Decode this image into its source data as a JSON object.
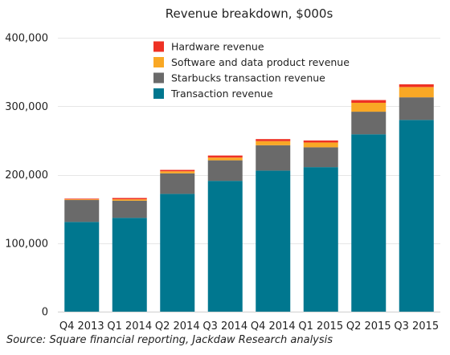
{
  "source_note": "Source: Square financial reporting, Jackdaw Research analysis",
  "chart_data": {
    "type": "bar",
    "stacked": true,
    "title": "Revenue breakdown, $000s",
    "xlabel": "",
    "ylabel": "",
    "ylim": [
      0,
      400000
    ],
    "yticks": [
      0,
      100000,
      200000,
      300000,
      400000
    ],
    "ytick_labels": [
      "0",
      "100,000",
      "200,000",
      "300,000",
      "400,000"
    ],
    "grid": true,
    "legend_position": "top-center",
    "categories": [
      "Q4 2013",
      "Q1 2014",
      "Q2 2014",
      "Q3 2014",
      "Q4 2014",
      "Q1 2015",
      "Q2 2015",
      "Q3 2015"
    ],
    "series": [
      {
        "name": "Transaction revenue",
        "color": "#00778f",
        "values": [
          131000,
          137000,
          172000,
          191000,
          206000,
          211000,
          259000,
          280000
        ]
      },
      {
        "name": "Starbucks transaction revenue",
        "color": "#6a6a6a",
        "values": [
          32000,
          25000,
          30000,
          30000,
          37000,
          29000,
          33000,
          33000
        ]
      },
      {
        "name": "Software and data product revenue",
        "color": "#f9a825",
        "values": [
          1000,
          2000,
          3000,
          4000,
          6000,
          7000,
          13000,
          15000
        ]
      },
      {
        "name": "Hardware revenue",
        "color": "#ee3124",
        "values": [
          1000,
          2000,
          2000,
          3000,
          3000,
          3000,
          4000,
          4000
        ]
      }
    ],
    "legend_order": [
      "Hardware revenue",
      "Software and data product revenue",
      "Starbucks transaction revenue",
      "Transaction revenue"
    ]
  }
}
